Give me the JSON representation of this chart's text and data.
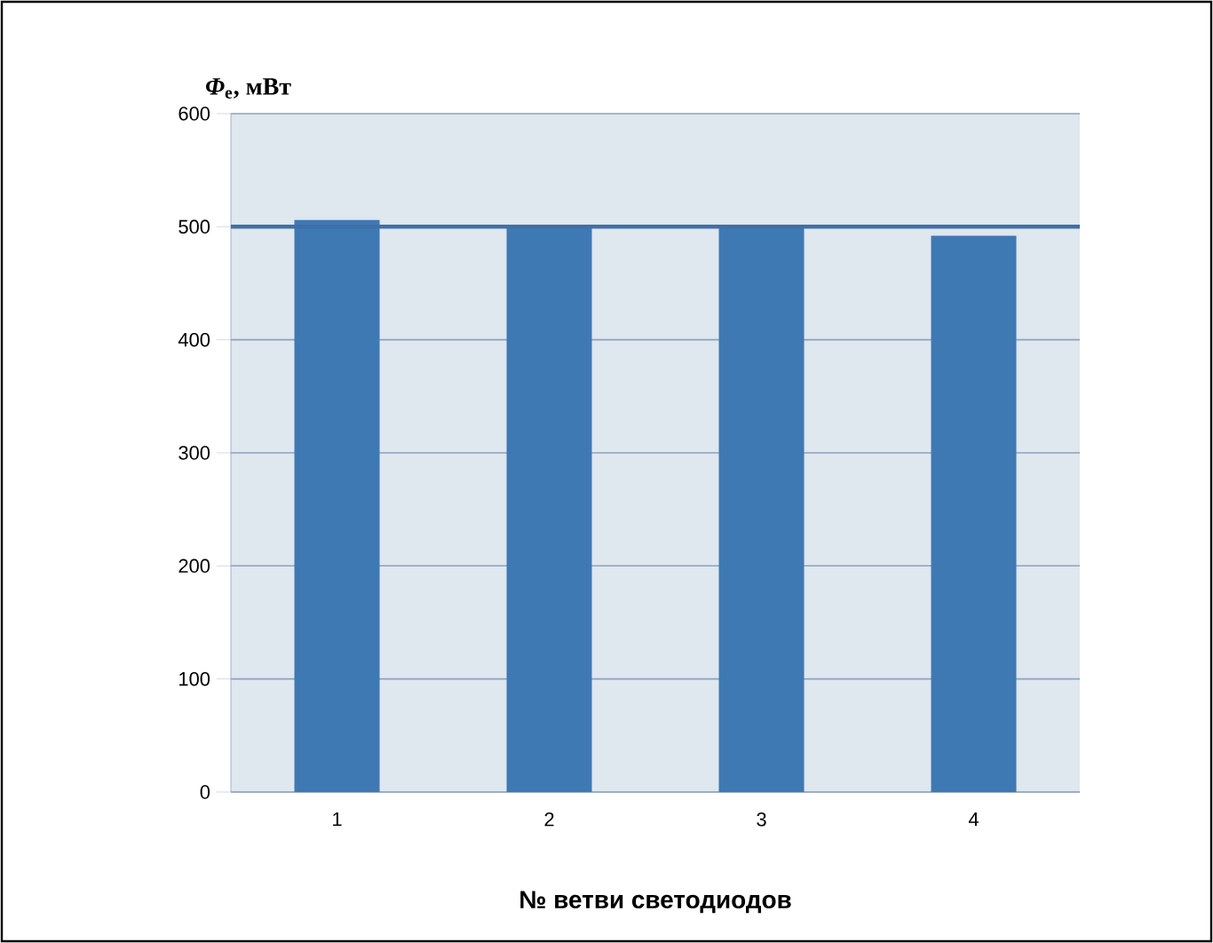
{
  "chart_data": {
    "type": "bar",
    "ylabel": "*Φ*$_{e}$, мВт",
    "xlabel": "№ ветви светодиодов",
    "categories": [
      "1",
      "2",
      "3",
      "4"
    ],
    "values": [
      506,
      500,
      500,
      492
    ],
    "color": "#3f79b4",
    "ylim": [
      0,
      600
    ],
    "yticks": [
      0,
      100,
      200,
      300,
      400,
      500,
      600
    ],
    "grid": "y",
    "ref_lines": [
      {
        "axis": "y",
        "value": 500,
        "color": "#3f6fa8"
      }
    ]
  }
}
